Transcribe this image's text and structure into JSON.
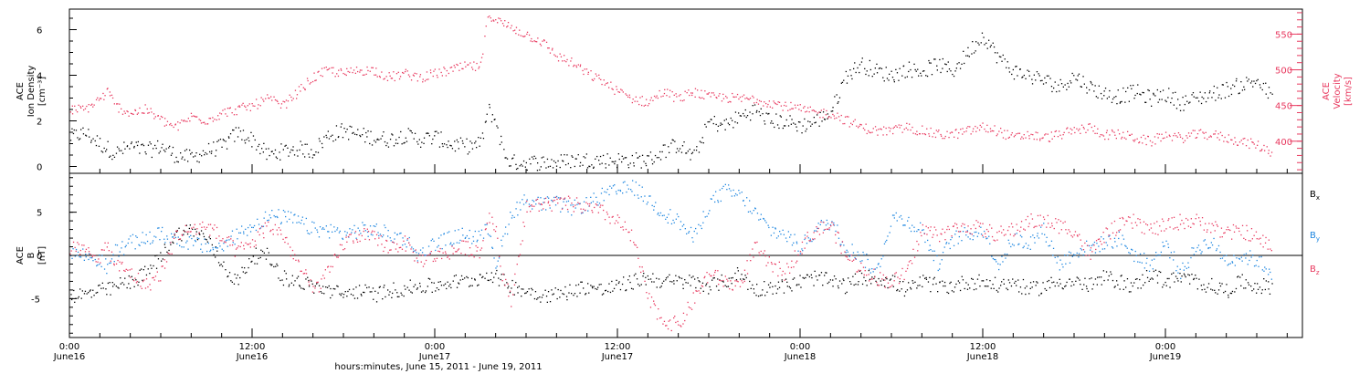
{
  "colors": {
    "black": "#000000",
    "pink": "#e8395f",
    "blue": "#1f87e0"
  },
  "chart_data": [
    {
      "type": "scatter",
      "panel": "top",
      "ylabel": [
        "ACE",
        "Ion Density",
        "[cm⁻³]"
      ],
      "ylabel_right": [
        "ACE",
        "Velocity",
        "[km/s]"
      ],
      "xlim": [
        0,
        81
      ],
      "ylim": [
        -0.3,
        6.9
      ],
      "y2lim": [
        355,
        585
      ],
      "yticks": [
        0,
        2,
        4,
        6
      ],
      "y2ticks": [
        400,
        450,
        500,
        550
      ],
      "series": [
        {
          "name": "",
          "axis": "left",
          "color": "#000000",
          "x": [
            0,
            1,
            2,
            2.5,
            3,
            4,
            5,
            6,
            7,
            8,
            9,
            10,
            11,
            12,
            13,
            14,
            15,
            16,
            17,
            18,
            19,
            20,
            21,
            22,
            23,
            24,
            25,
            26,
            27,
            27.5,
            28,
            28.5,
            29,
            30,
            31,
            32,
            33,
            34,
            35,
            36,
            37,
            38,
            39,
            40,
            41,
            42,
            43,
            44,
            45,
            46,
            47,
            48,
            49,
            50,
            51,
            52,
            53,
            54,
            55,
            56,
            57,
            58,
            59,
            60,
            61,
            62,
            63,
            64,
            65,
            66,
            67,
            68,
            69,
            70,
            71,
            72,
            73,
            74,
            75,
            76,
            77,
            78,
            79
          ],
          "y": [
            1.3,
            1.5,
            1.0,
            0.8,
            0.6,
            0.9,
            0.7,
            0.9,
            0.5,
            0.4,
            0.7,
            0.9,
            1.5,
            1.2,
            0.5,
            0.7,
            0.8,
            0.7,
            1.4,
            1.6,
            1.4,
            1.3,
            1.2,
            1.4,
            1.2,
            1.3,
            1.0,
            0.9,
            1.0,
            2.5,
            2.0,
            0.6,
            0.2,
            0.2,
            0.2,
            0.2,
            0.3,
            0.3,
            0.3,
            0.3,
            0.3,
            0.3,
            0.7,
            1.0,
            0.4,
            2.0,
            1.8,
            2.2,
            2.5,
            2.0,
            2.0,
            1.8,
            2.0,
            2.4,
            4.0,
            4.5,
            4.2,
            4.0,
            4.3,
            4.2,
            4.5,
            4.2,
            5.0,
            5.8,
            4.8,
            4.2,
            4.0,
            3.8,
            3.5,
            4.0,
            3.5,
            3.2,
            3.1,
            3.3,
            3.0,
            3.2,
            2.8,
            3.0,
            3.2,
            3.4,
            3.6,
            3.8,
            3.0
          ]
        },
        {
          "name": "",
          "axis": "right",
          "color": "#e8395f",
          "x": [
            0,
            1,
            2,
            2.5,
            3,
            4,
            5,
            6,
            7,
            8,
            9,
            10,
            11,
            12,
            13,
            14,
            15,
            16,
            17,
            18,
            19,
            20,
            21,
            22,
            23,
            24,
            25,
            26,
            27,
            27.5,
            28,
            28.5,
            29,
            30,
            31,
            32,
            33,
            34,
            35,
            36,
            37,
            38,
            39,
            40,
            41,
            42,
            43,
            44,
            45,
            46,
            47,
            48,
            49,
            50,
            51,
            52,
            53,
            54,
            55,
            56,
            57,
            58,
            59,
            60,
            61,
            62,
            63,
            64,
            65,
            66,
            67,
            68,
            69,
            70,
            71,
            72,
            73,
            74,
            75,
            76,
            77,
            78,
            79
          ],
          "y": [
            445,
            445,
            460,
            470,
            450,
            440,
            445,
            430,
            420,
            435,
            430,
            440,
            445,
            450,
            460,
            450,
            470,
            490,
            500,
            495,
            500,
            500,
            490,
            495,
            490,
            495,
            500,
            505,
            505,
            580,
            570,
            565,
            560,
            550,
            540,
            520,
            510,
            495,
            485,
            470,
            460,
            455,
            470,
            460,
            470,
            462,
            462,
            460,
            460,
            455,
            450,
            445,
            440,
            440,
            430,
            420,
            415,
            415,
            420,
            415,
            410,
            410,
            415,
            420,
            415,
            405,
            410,
            405,
            410,
            415,
            420,
            410,
            410,
            405,
            400,
            410,
            405,
            410,
            410,
            405,
            400,
            395,
            385
          ]
        }
      ]
    },
    {
      "type": "scatter",
      "panel": "bottom",
      "ylabel": [
        "ACE",
        "B",
        "[nT]"
      ],
      "xlabel": "hours:minutes, June 15, 2011 - June 19, 2011",
      "xlim": [
        0,
        81
      ],
      "ylim": [
        -9.5,
        9.5
      ],
      "yticks": [
        -5,
        0,
        5
      ],
      "zero_line": true,
      "x_ticks": [
        {
          "x": 0,
          "label": "0:00",
          "sub": "June16"
        },
        {
          "x": 12,
          "label": "12:00",
          "sub": "June16"
        },
        {
          "x": 24,
          "label": "0:00",
          "sub": "June17"
        },
        {
          "x": 36,
          "label": "12:00",
          "sub": "June17"
        },
        {
          "x": 48,
          "label": "0:00",
          "sub": "June18"
        },
        {
          "x": 60,
          "label": "12:00",
          "sub": "June18"
        },
        {
          "x": 72,
          "label": "0:00",
          "sub": "June19"
        }
      ],
      "series": [
        {
          "name": "B",
          "sub": "x",
          "color": "#000000",
          "x": [
            0,
            1,
            2,
            2.5,
            3,
            4,
            5,
            6,
            7,
            8,
            9,
            10,
            11,
            12,
            13,
            14,
            15,
            16,
            17,
            18,
            19,
            20,
            21,
            22,
            23,
            24,
            25,
            26,
            27,
            27.5,
            28,
            28.5,
            29,
            30,
            31,
            32,
            33,
            34,
            35,
            36,
            37,
            38,
            39,
            40,
            41,
            42,
            43,
            44,
            45,
            46,
            47,
            48,
            49,
            50,
            51,
            52,
            53,
            54,
            55,
            56,
            57,
            58,
            59,
            60,
            61,
            62,
            63,
            64,
            65,
            66,
            67,
            68,
            69,
            70,
            71,
            72,
            73,
            74,
            75,
            76,
            77,
            78,
            79
          ],
          "y": [
            -4.5,
            -4.5,
            -4.0,
            -4.0,
            -3.5,
            -3.0,
            -2.0,
            0,
            2.5,
            3.0,
            2.0,
            -1.0,
            -3.0,
            0,
            0,
            -2.5,
            -3.0,
            -3.5,
            -4.0,
            -4.5,
            -4.0,
            -4.5,
            -4.0,
            -3.8,
            -3.5,
            -3.5,
            -3.0,
            -3.0,
            -2.5,
            -2.0,
            -2.5,
            -3.0,
            -3.5,
            -4.0,
            -4.5,
            -4.5,
            -4.0,
            -3.5,
            -4.0,
            -3.5,
            -3.0,
            -2.5,
            -3.0,
            -3.0,
            -3.0,
            -3.5,
            -3.0,
            -2.0,
            -4.0,
            -3.5,
            -3.5,
            -3.0,
            -2.5,
            -3.0,
            -3.5,
            -2.5,
            -2.5,
            -3.0,
            -4.0,
            -3.0,
            -3.5,
            -3.5,
            -3.0,
            -3.0,
            -3.5,
            -3.0,
            -4.0,
            -3.5,
            -3.0,
            -3.0,
            -3.5,
            -2.5,
            -3.0,
            -3.5,
            -2.0,
            -3.0,
            -2.5,
            -3.0,
            -3.5,
            -4.0,
            -3.0,
            -3.5,
            -3.5
          ]
        },
        {
          "name": "B",
          "sub": "y",
          "color": "#1f87e0",
          "x": [
            0,
            1,
            2,
            2.5,
            3,
            4,
            5,
            6,
            7,
            8,
            9,
            10,
            11,
            12,
            13,
            14,
            15,
            16,
            17,
            18,
            19,
            20,
            21,
            22,
            23,
            24,
            25,
            26,
            27,
            27.5,
            28,
            28.5,
            29,
            30,
            31,
            32,
            33,
            34,
            35,
            36,
            37,
            38,
            39,
            40,
            41,
            42,
            43,
            44,
            45,
            46,
            47,
            48,
            49,
            50,
            51,
            52,
            53,
            54,
            55,
            56,
            57,
            58,
            59,
            60,
            61,
            62,
            63,
            64,
            65,
            66,
            67,
            68,
            69,
            70,
            71,
            72,
            73,
            74,
            75,
            76,
            77,
            78,
            79
          ],
          "y": [
            0.5,
            0,
            -0.5,
            -1.5,
            0.5,
            1.5,
            2.0,
            2.5,
            2.0,
            1.5,
            1.0,
            1.0,
            2.5,
            3.5,
            4.5,
            4.5,
            4.0,
            3.0,
            3.0,
            2.5,
            3.0,
            3.0,
            2.5,
            2.0,
            0,
            1.5,
            2.0,
            2.5,
            2.0,
            3.5,
            -1.0,
            2.0,
            5.0,
            6.5,
            6.0,
            6.0,
            5.5,
            6.0,
            7.0,
            7.5,
            8.0,
            6.5,
            5.0,
            4.0,
            2.0,
            6.0,
            7.5,
            7.0,
            5.0,
            3.0,
            2.5,
            1.0,
            3.0,
            4.0,
            1.0,
            0,
            -2.0,
            4.5,
            4.0,
            3.0,
            -1.0,
            2.0,
            2.5,
            3.0,
            -1.0,
            2.0,
            1.5,
            3.0,
            -1.0,
            0.5,
            1.0,
            1.5,
            2.0,
            0,
            -1.0,
            1.5,
            -2.0,
            1.0,
            1.5,
            -0.5,
            0,
            -0.5,
            -2.0
          ]
        },
        {
          "name": "B",
          "sub": "z",
          "color": "#e8395f",
          "x": [
            0,
            1,
            2,
            2.5,
            3,
            4,
            5,
            6,
            7,
            8,
            9,
            10,
            11,
            12,
            13,
            14,
            15,
            16,
            17,
            18,
            19,
            20,
            21,
            22,
            23,
            24,
            25,
            26,
            27,
            27.5,
            28,
            28.5,
            29,
            30,
            31,
            32,
            33,
            34,
            35,
            36,
            37,
            38,
            39,
            40,
            41,
            42,
            43,
            44,
            45,
            46,
            47,
            48,
            49,
            50,
            51,
            52,
            53,
            54,
            55,
            56,
            57,
            58,
            59,
            60,
            61,
            62,
            63,
            64,
            65,
            66,
            67,
            68,
            69,
            70,
            71,
            72,
            73,
            74,
            75,
            76,
            77,
            78,
            79
          ],
          "y": [
            1.0,
            0.5,
            0,
            1.0,
            -1.0,
            -2.0,
            -3.5,
            -2.0,
            2.5,
            3.0,
            3.5,
            2.0,
            0.5,
            1.5,
            3.5,
            2.5,
            -1.0,
            -4.0,
            -2.0,
            1.5,
            2.5,
            2.0,
            1.0,
            1.5,
            -0.5,
            0,
            0.5,
            1.0,
            0.5,
            5.0,
            3.0,
            -3.0,
            -5.0,
            5.5,
            6.0,
            6.0,
            6.0,
            5.5,
            5.0,
            4.0,
            2.0,
            -5.0,
            -7.5,
            -8.0,
            -5.0,
            -2.0,
            -3.0,
            -3.5,
            1.0,
            -1.0,
            -2.0,
            1.0,
            3.0,
            3.5,
            0,
            -1.5,
            -2.5,
            -3.0,
            -2.0,
            3.0,
            2.5,
            3.0,
            3.5,
            3.0,
            2.5,
            3.0,
            4.0,
            4.0,
            3.5,
            3.0,
            0,
            2.5,
            3.5,
            4.0,
            3.0,
            3.5,
            4.0,
            4.0,
            3.5,
            2.5,
            3.0,
            2.0,
            1.0
          ]
        }
      ]
    }
  ]
}
